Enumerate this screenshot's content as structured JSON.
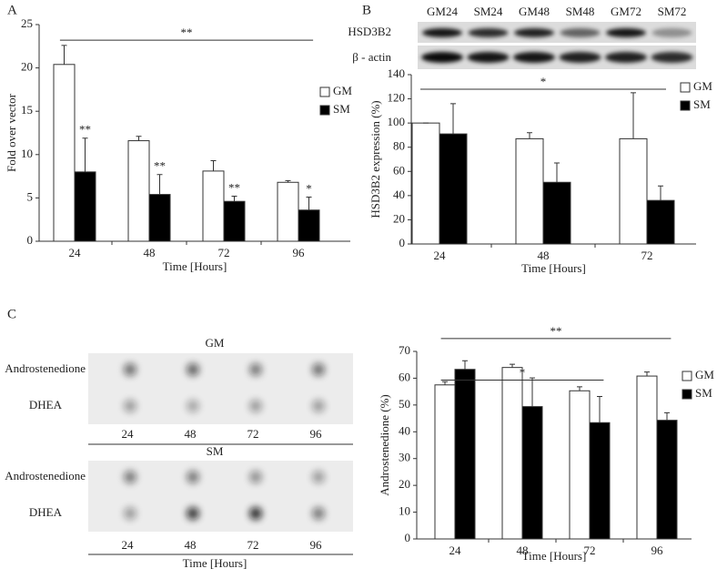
{
  "panel_labels": [
    "A",
    "B",
    "C"
  ],
  "chart_data": [
    {
      "type": "bar",
      "ylabel": "Fold over vector",
      "xlabel": "Time [Hours]",
      "categories": [
        "24",
        "48",
        "72",
        "96"
      ],
      "series": [
        {
          "name": "GM",
          "color": "#ffffff",
          "values": [
            20.4,
            11.6,
            8.1,
            6.8
          ],
          "errors": [
            2.2,
            0.5,
            1.2,
            0.2
          ]
        },
        {
          "name": "SM",
          "color": "#000000",
          "values": [
            8.0,
            5.4,
            4.6,
            3.6
          ],
          "errors": [
            3.9,
            2.3,
            0.6,
            1.5
          ],
          "sig_labels": [
            "**",
            "**",
            "**",
            "*"
          ]
        }
      ],
      "ylim": [
        0,
        25
      ],
      "yticks": [
        0,
        5,
        10,
        15,
        20,
        25
      ],
      "grid": false,
      "legend": "right",
      "brackets": [
        {
          "label": "**",
          "y": 23.2,
          "from": "24",
          "to": "96"
        }
      ]
    },
    {
      "type": "bar",
      "ylabel": "HSD3B2 expression (%)",
      "xlabel": "Time [Hours]",
      "categories": [
        "24",
        "48",
        "72"
      ],
      "series": [
        {
          "name": "GM",
          "color": "#ffffff",
          "values": [
            100,
            87,
            87
          ],
          "errors": [
            0,
            5,
            38
          ]
        },
        {
          "name": "SM",
          "color": "#000000",
          "values": [
            91,
            51,
            36
          ],
          "errors": [
            25,
            16,
            12
          ]
        }
      ],
      "ylim": [
        0,
        140
      ],
      "yticks": [
        0,
        20,
        40,
        60,
        80,
        100,
        120,
        140
      ],
      "grid": false,
      "legend": "right",
      "brackets": [
        {
          "label": "*",
          "y": 128,
          "from": "24",
          "to": "72"
        }
      ]
    },
    {
      "type": "bar",
      "ylabel": "Androstenedione (%)",
      "xlabel": "Time [Hours]",
      "categories": [
        "24",
        "48",
        "72",
        "96"
      ],
      "series": [
        {
          "name": "GM",
          "color": "#ffffff",
          "values": [
            57.5,
            64,
            55.3,
            60.8
          ],
          "errors": [
            1.2,
            1.2,
            1.5,
            1.5
          ]
        },
        {
          "name": "SM",
          "color": "#000000",
          "values": [
            63.3,
            49.4,
            43.4,
            44.3
          ],
          "errors": [
            3.2,
            10.7,
            9.8,
            2.8
          ]
        }
      ],
      "ylim": [
        0,
        70
      ],
      "yticks": [
        0,
        10,
        20,
        30,
        40,
        50,
        60,
        70
      ],
      "grid": false,
      "legend": "right",
      "brackets": [
        {
          "label": "*",
          "y": 59.3,
          "from": "24",
          "to": "72"
        },
        {
          "label": "**",
          "y": 74.8,
          "from": "24",
          "to": "96"
        }
      ]
    }
  ],
  "blot_b": {
    "lanes": [
      "GM24",
      "SM24",
      "GM48",
      "SM48",
      "GM72",
      "SM72"
    ],
    "rows": [
      "HSD3B2",
      "β - actin"
    ]
  },
  "blot_c": {
    "panels": [
      {
        "title": "GM",
        "rows": [
          "Androstenedione",
          "DHEA"
        ],
        "lanes": [
          "24",
          "48",
          "72",
          "96"
        ]
      },
      {
        "title": "SM",
        "rows": [
          "Androstenedione",
          "DHEA"
        ],
        "lanes": [
          "24",
          "48",
          "72",
          "96"
        ]
      }
    ],
    "xlabel": "Time [Hours]"
  }
}
